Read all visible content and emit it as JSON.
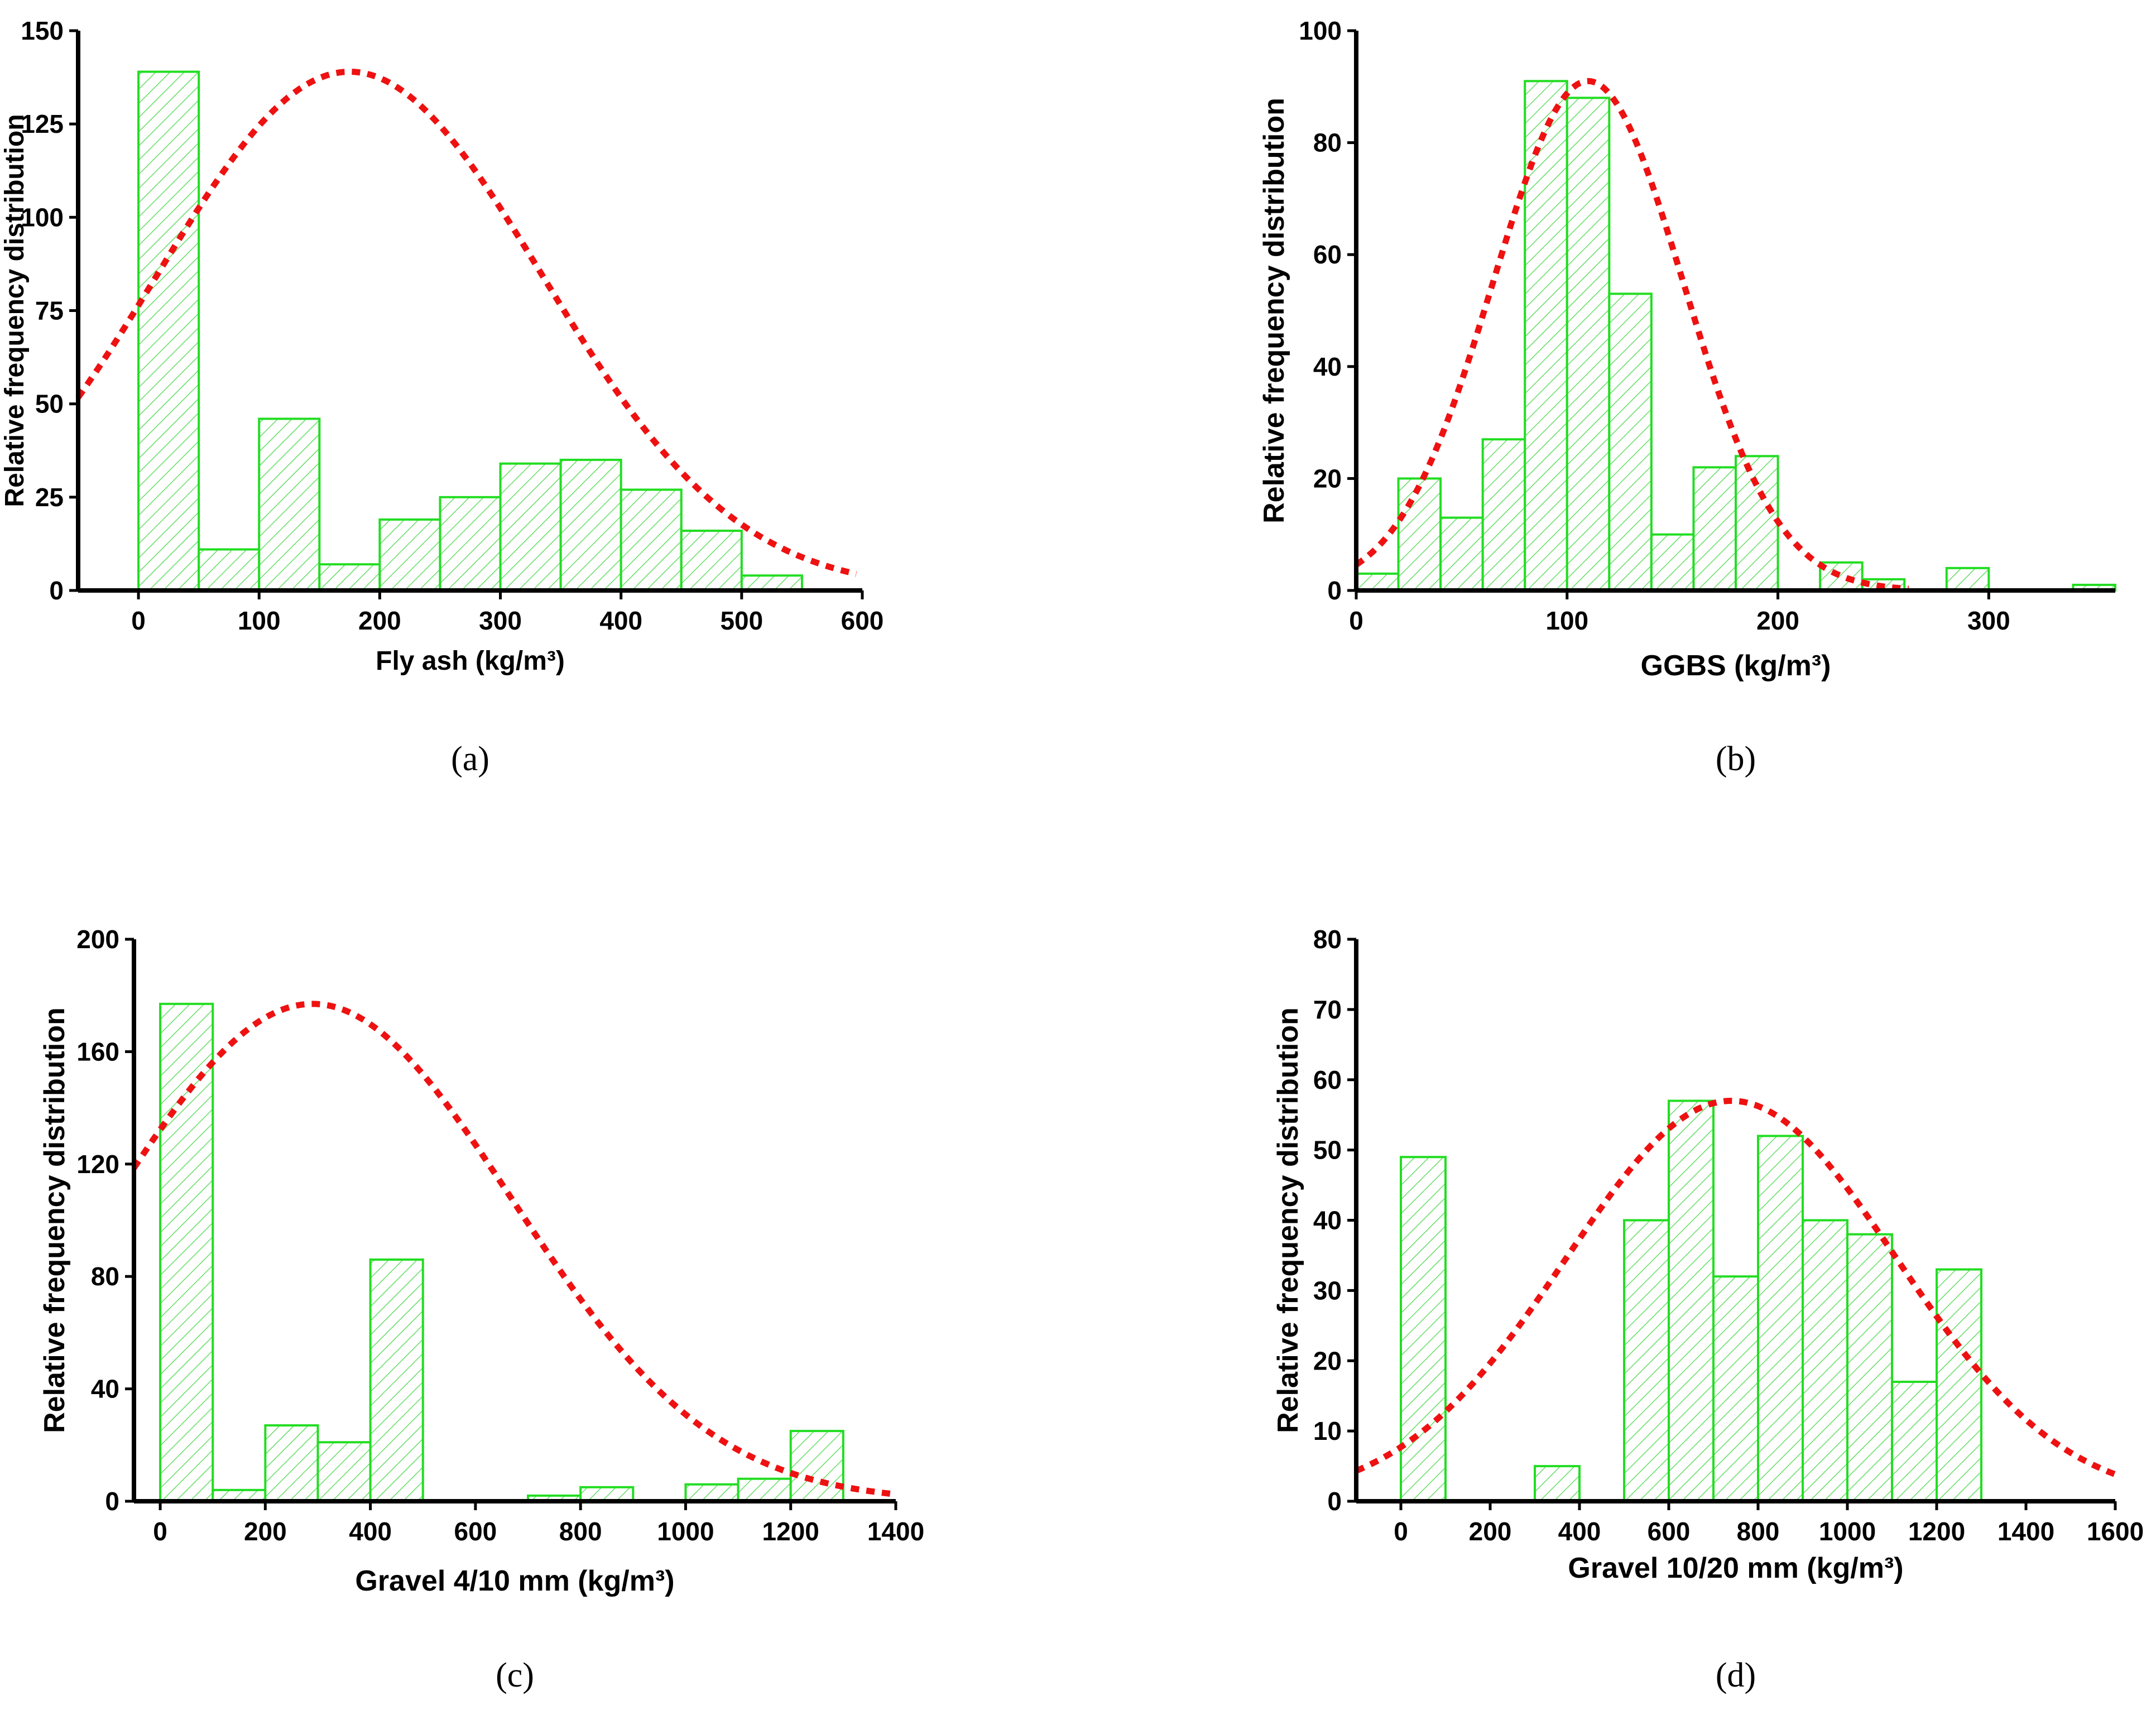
{
  "chart_data": [
    {
      "id": "a",
      "type": "bar",
      "caption": "(a)",
      "xlabel": "Fly ash (kg/m³)",
      "ylabel": "Relative frequency distribution",
      "xlim": [
        -50,
        600
      ],
      "ylim": [
        0,
        150
      ],
      "xticks": [
        0,
        100,
        200,
        300,
        400,
        500,
        600
      ],
      "yticks": [
        0,
        25,
        50,
        75,
        100,
        125,
        150
      ],
      "bins": [
        {
          "x0": 0,
          "x1": 50,
          "value": 139
        },
        {
          "x0": 50,
          "x1": 100,
          "value": 11
        },
        {
          "x0": 100,
          "x1": 150,
          "value": 46
        },
        {
          "x0": 150,
          "x1": 200,
          "value": 7
        },
        {
          "x0": 200,
          "x1": 250,
          "value": 19
        },
        {
          "x0": 250,
          "x1": 300,
          "value": 25
        },
        {
          "x0": 300,
          "x1": 350,
          "value": 34
        },
        {
          "x0": 350,
          "x1": 400,
          "value": 35
        },
        {
          "x0": 400,
          "x1": 450,
          "value": 27
        },
        {
          "x0": 450,
          "x1": 500,
          "value": 16
        },
        {
          "x0": 500,
          "x1": 550,
          "value": 4
        }
      ],
      "fit": {
        "type": "normal",
        "mean": 175,
        "sd": 160,
        "peak": 139,
        "x_range": [
          -50,
          595
        ]
      }
    },
    {
      "id": "b",
      "type": "bar",
      "caption": "(b)",
      "xlabel": "GGBS (kg/m³)",
      "ylabel": "Relative frequency distribution",
      "xlim": [
        0,
        360
      ],
      "ylim": [
        0,
        100
      ],
      "xticks": [
        0,
        100,
        200,
        300
      ],
      "yticks": [
        0,
        20,
        40,
        60,
        80,
        100
      ],
      "bins": [
        {
          "x0": 0,
          "x1": 20,
          "value": 3
        },
        {
          "x0": 20,
          "x1": 40,
          "value": 20
        },
        {
          "x0": 40,
          "x1": 60,
          "value": 13
        },
        {
          "x0": 60,
          "x1": 80,
          "value": 27
        },
        {
          "x0": 80,
          "x1": 100,
          "value": 91
        },
        {
          "x0": 100,
          "x1": 120,
          "value": 88
        },
        {
          "x0": 120,
          "x1": 140,
          "value": 53
        },
        {
          "x0": 140,
          "x1": 160,
          "value": 10
        },
        {
          "x0": 160,
          "x1": 180,
          "value": 22
        },
        {
          "x0": 180,
          "x1": 200,
          "value": 24
        },
        {
          "x0": 220,
          "x1": 240,
          "value": 5
        },
        {
          "x0": 240,
          "x1": 260,
          "value": 2
        },
        {
          "x0": 280,
          "x1": 300,
          "value": 4
        },
        {
          "x0": 340,
          "x1": 360,
          "value": 1
        }
      ],
      "fit": {
        "type": "normal",
        "mean": 110,
        "sd": 45,
        "peak": 91,
        "x_range": [
          0,
          262
        ]
      }
    },
    {
      "id": "c",
      "type": "bar",
      "caption": "(c)",
      "xlabel": "Gravel 4/10 mm (kg/m³)",
      "ylabel": "Relative frequency distribution",
      "xlim": [
        -50,
        1400
      ],
      "ylim": [
        0,
        200
      ],
      "xticks": [
        0,
        200,
        400,
        600,
        800,
        1000,
        1200,
        1400
      ],
      "yticks": [
        0,
        40,
        80,
        120,
        160,
        200
      ],
      "bins": [
        {
          "x0": 0,
          "x1": 100,
          "value": 177
        },
        {
          "x0": 100,
          "x1": 200,
          "value": 4
        },
        {
          "x0": 200,
          "x1": 300,
          "value": 27
        },
        {
          "x0": 300,
          "x1": 400,
          "value": 21
        },
        {
          "x0": 400,
          "x1": 500,
          "value": 86
        },
        {
          "x0": 700,
          "x1": 800,
          "value": 2
        },
        {
          "x0": 800,
          "x1": 900,
          "value": 5
        },
        {
          "x0": 1000,
          "x1": 1100,
          "value": 6
        },
        {
          "x0": 1100,
          "x1": 1200,
          "value": 8
        },
        {
          "x0": 1200,
          "x1": 1300,
          "value": 25
        }
      ],
      "fit": {
        "type": "normal",
        "mean": 290,
        "sd": 380,
        "peak": 177,
        "x_range": [
          -50,
          1400
        ]
      }
    },
    {
      "id": "d",
      "type": "bar",
      "caption": "(d)",
      "xlabel": "Gravel 10/20 mm (kg/m³)",
      "ylabel": "Relative frequency distribution",
      "xlim": [
        -100,
        1600
      ],
      "ylim": [
        0,
        80
      ],
      "xticks": [
        0,
        200,
        400,
        600,
        800,
        1000,
        1200,
        1400,
        1600
      ],
      "yticks": [
        0,
        10,
        20,
        30,
        40,
        50,
        60,
        70,
        80
      ],
      "bins": [
        {
          "x0": 0,
          "x1": 100,
          "value": 49
        },
        {
          "x0": 300,
          "x1": 400,
          "value": 5
        },
        {
          "x0": 500,
          "x1": 600,
          "value": 40
        },
        {
          "x0": 600,
          "x1": 700,
          "value": 57
        },
        {
          "x0": 700,
          "x1": 800,
          "value": 32
        },
        {
          "x0": 800,
          "x1": 900,
          "value": 52
        },
        {
          "x0": 900,
          "x1": 1000,
          "value": 40
        },
        {
          "x0": 1000,
          "x1": 1100,
          "value": 38
        },
        {
          "x0": 1100,
          "x1": 1200,
          "value": 17
        },
        {
          "x0": 1200,
          "x1": 1300,
          "value": 33
        }
      ],
      "fit": {
        "type": "normal",
        "mean": 740,
        "sd": 370,
        "peak": 57,
        "x_range": [
          -100,
          1600
        ]
      }
    }
  ]
}
